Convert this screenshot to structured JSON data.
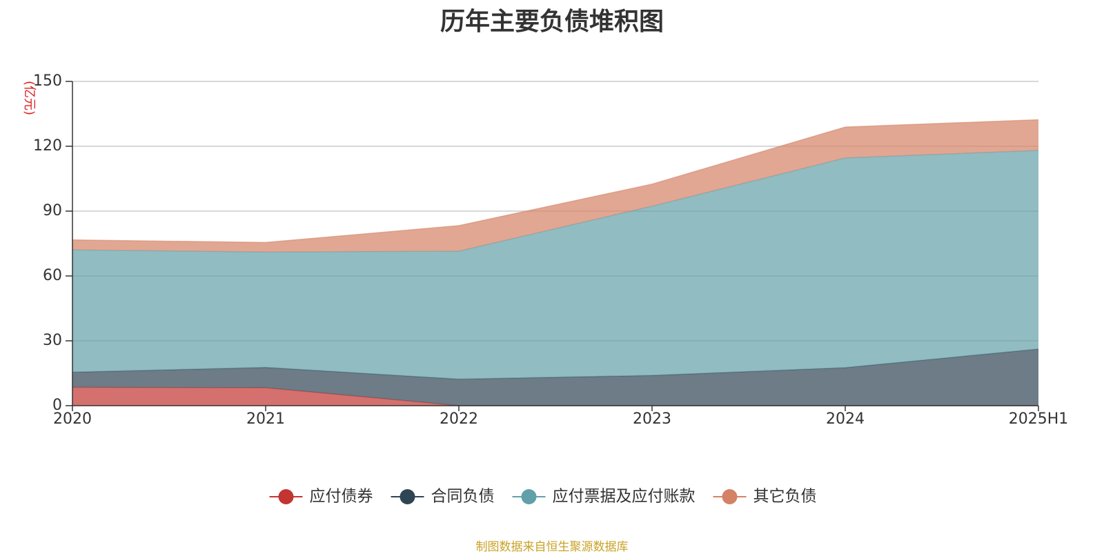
{
  "chart_data": {
    "type": "area",
    "stacked": true,
    "title": "历年主要负债堆积图",
    "unit_label": "(亿元)",
    "categories": [
      "2020",
      "2021",
      "2022",
      "2023",
      "2024",
      "2025H1"
    ],
    "ylim": [
      0,
      150
    ],
    "yticks": [
      0,
      30,
      60,
      90,
      120,
      150
    ],
    "grid": true,
    "legend_position": "bottom-center",
    "series": [
      {
        "name": "应付债券",
        "color": "#c23531",
        "values": [
          8.5,
          8.3,
          0,
          0,
          0,
          0
        ]
      },
      {
        "name": "合同负债",
        "color": "#2f4554",
        "values": [
          7.0,
          9.4,
          12.3,
          14.0,
          17.6,
          26.2
        ]
      },
      {
        "name": "应付票据及应付账款",
        "color": "#61a0a8",
        "values": [
          56.6,
          53.4,
          59.2,
          78.3,
          97.0,
          91.9
        ]
      },
      {
        "name": "其它负债",
        "color": "#d48265",
        "values": [
          4.6,
          4.4,
          11.8,
          10.2,
          14.3,
          14.2
        ]
      }
    ]
  },
  "source_note": "制图数据来自恒生聚源数据库"
}
